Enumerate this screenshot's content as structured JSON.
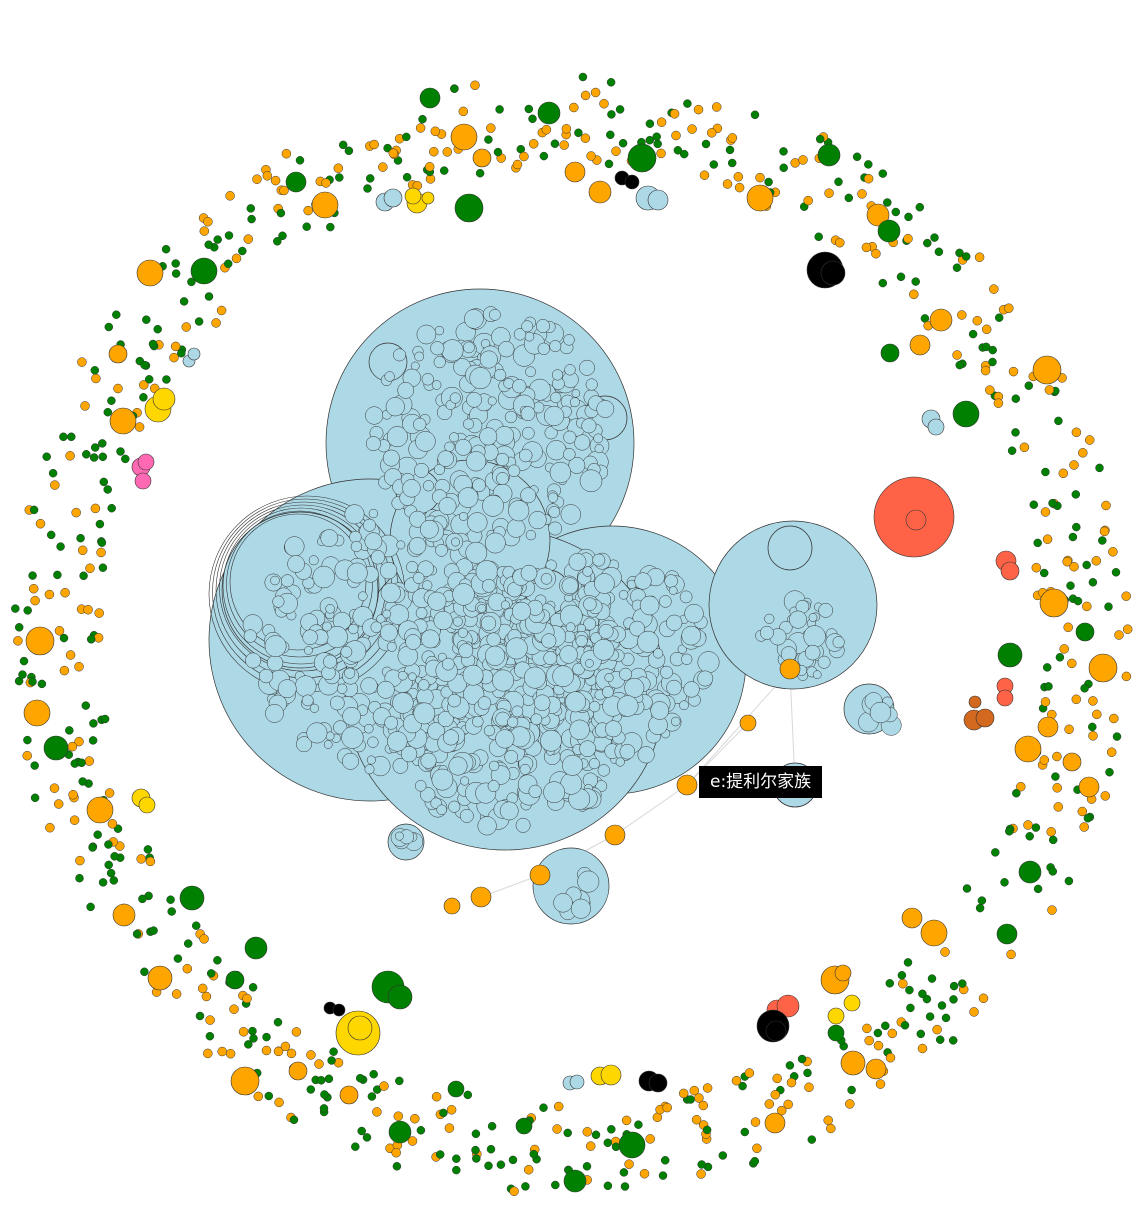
{
  "tooltip": {
    "text": "e:提利尔家族"
  },
  "legend_colors": {
    "lightblue": "#add8e6",
    "orange": "#ffa500",
    "green": "#008000",
    "gold": "#ffd700",
    "black": "#000000",
    "tomato": "#ff6347",
    "hotpink": "#ff69b4",
    "chocolate": "#d2691e"
  }
}
